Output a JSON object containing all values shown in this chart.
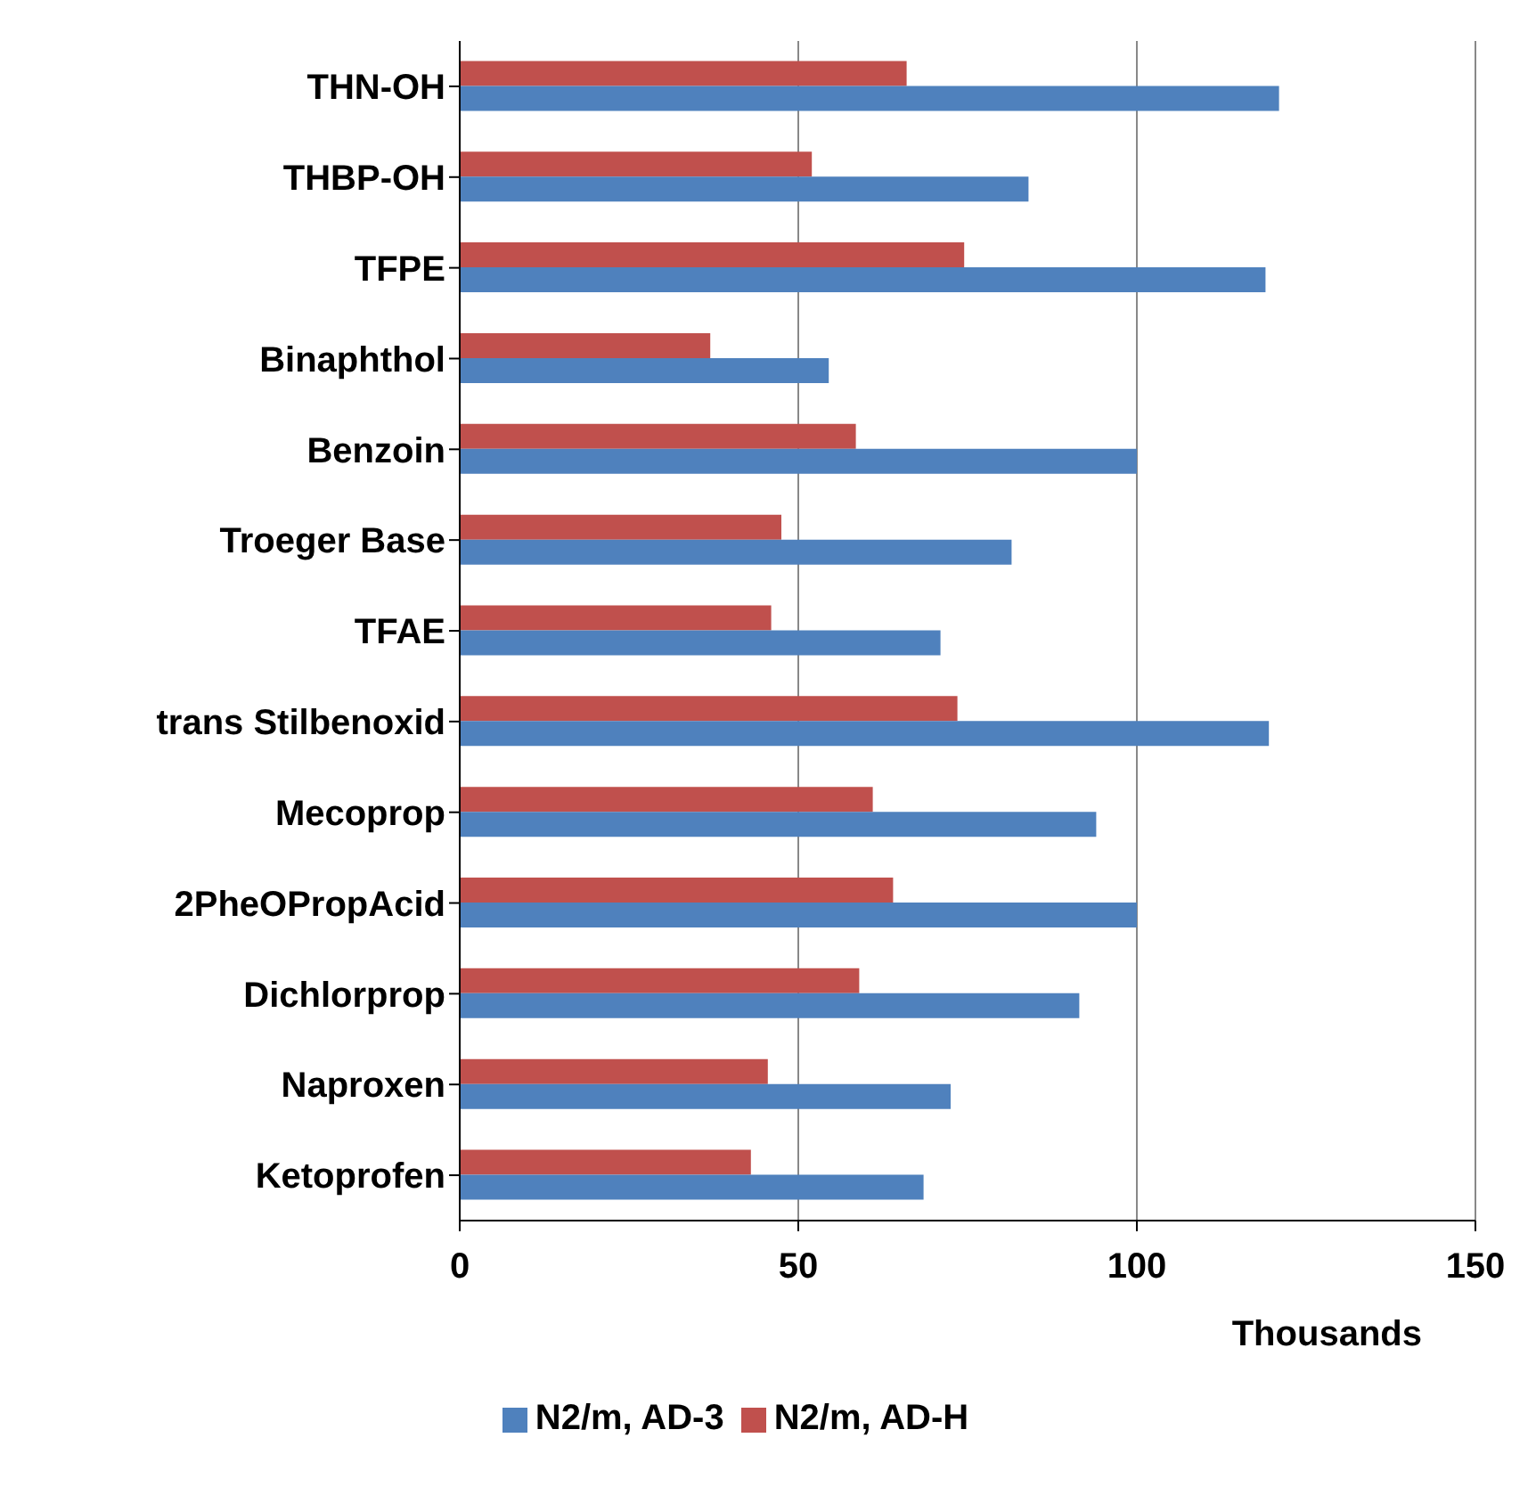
{
  "chart_data": {
    "type": "bar",
    "orientation": "horizontal",
    "xlabel": "Thousands",
    "categories": [
      "THN-OH",
      "THBP-OH",
      "TFPE",
      "Binaphthol",
      "Benzoin",
      "Troeger Base",
      "TFAE",
      "trans Stilbenoxid",
      "Mecoprop",
      "2PheOPropAcid",
      "Dichlorprop",
      "Naproxen",
      "Ketoprofen"
    ],
    "series": [
      {
        "name": "N2/m, AD-H",
        "color": "#c0504d",
        "values": [
          66,
          52,
          74.5,
          37,
          58.5,
          47.5,
          46,
          73.5,
          61,
          64,
          59,
          45.5,
          43
        ]
      },
      {
        "name": "N2/m, AD-3",
        "color": "#4f81bd",
        "values": [
          121,
          84,
          119,
          54.5,
          100,
          81.5,
          71,
          119.5,
          94,
          100,
          91.5,
          72.5,
          68.5
        ]
      }
    ],
    "xlim": [
      0,
      150
    ],
    "xticks": [
      0,
      50,
      100,
      150
    ],
    "grid": "x",
    "legend": "bottom"
  }
}
